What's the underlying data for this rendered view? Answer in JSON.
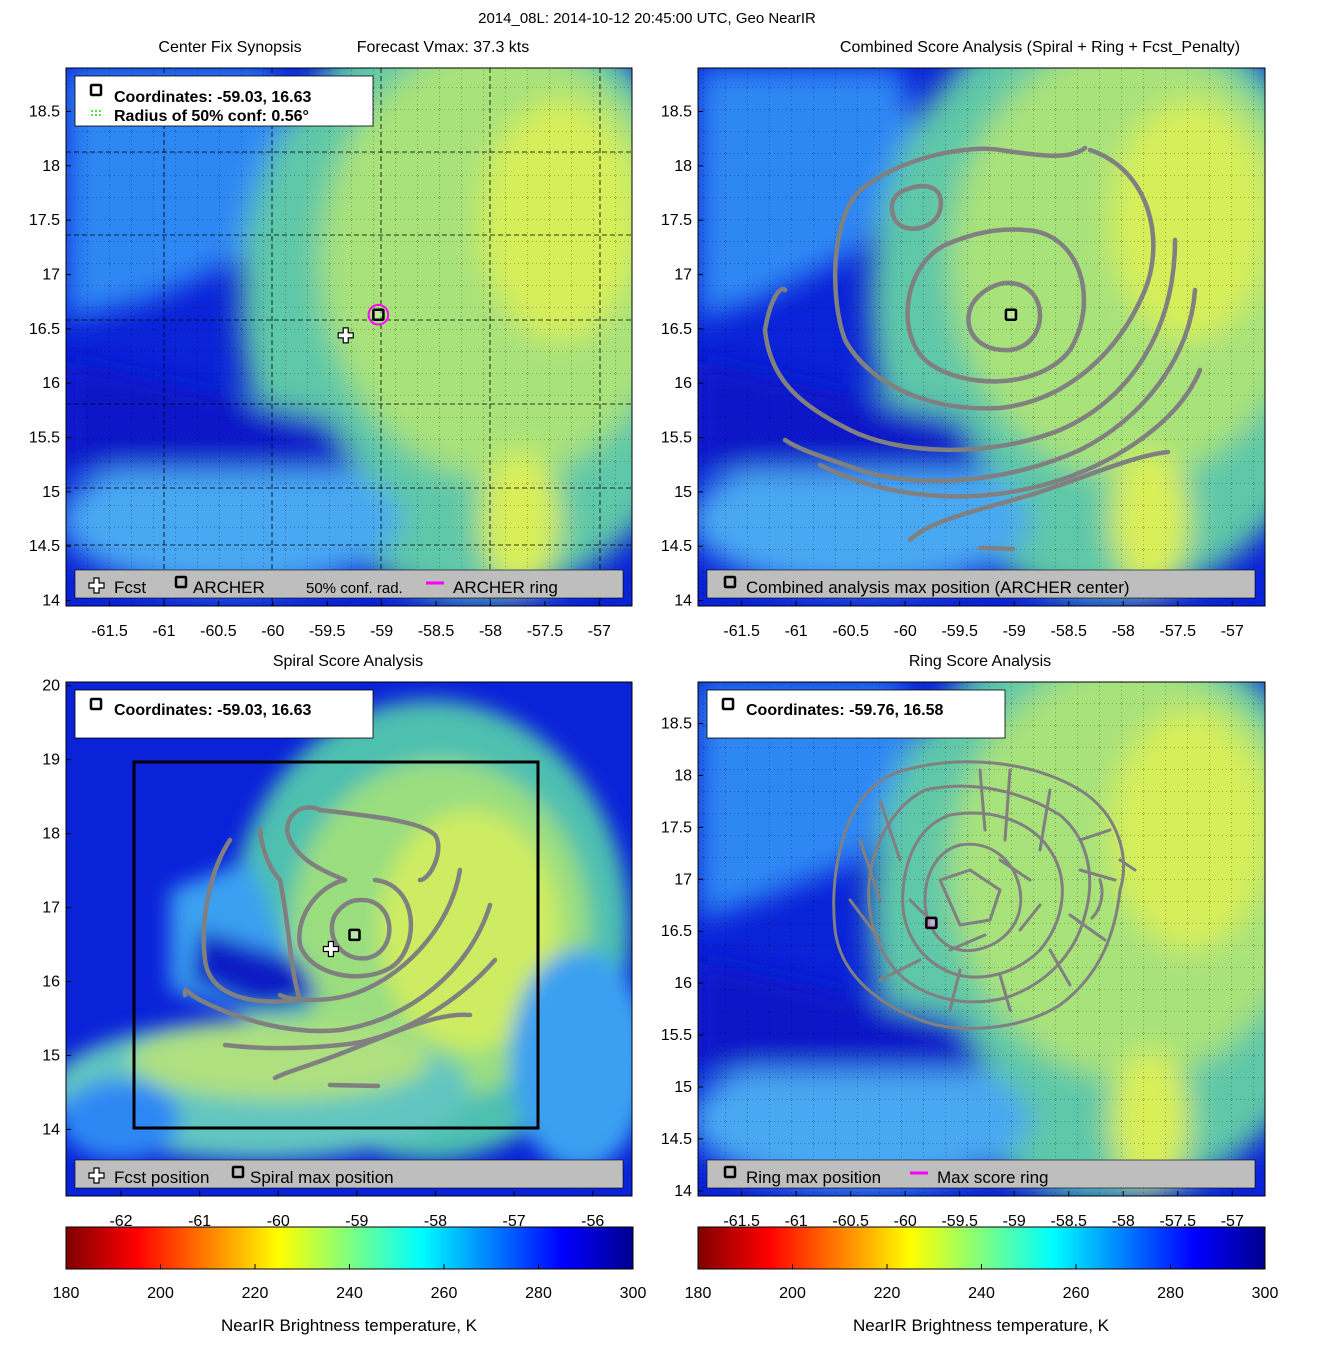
{
  "suptitle": "2014_08L: 2014-10-12 20:45:00 UTC, Geo NearIR",
  "colors": {
    "marker": "#000000",
    "ring": "#ff00ff",
    "contour": "#808080",
    "legend_bg": "#bebebe",
    "conf_dots": "#00c800"
  },
  "chart_data": [
    {
      "type": "heatmap",
      "panel": "top-left",
      "title_left": "Center Fix Synopsis",
      "title_right": "Forecast Vmax: 37.3 kts",
      "xlim": [
        -61.9,
        -56.7
      ],
      "ylim": [
        13.95,
        18.9
      ],
      "xticks": [
        "-61.5",
        "-61",
        "-60.5",
        "-60",
        "-59.5",
        "-59",
        "-58.5",
        "-58",
        "-57.5",
        "-57"
      ],
      "yticks": [
        "14",
        "14.5",
        "15",
        "15.5",
        "16",
        "16.5",
        "17",
        "17.5",
        "18",
        "18.5"
      ],
      "grid": "dotted",
      "info_box": {
        "line1": "Coordinates: -59.03, 16.63",
        "line2": "Radius of 50% conf: 0.56°"
      },
      "legend": {
        "placement": "bottom",
        "items": [
          "Fcst",
          "ARCHER",
          "50% conf. rad.",
          "ARCHER ring"
        ]
      },
      "fcst_marker": {
        "x": -59.33,
        "y": 16.44
      },
      "center_marker": {
        "x": -59.03,
        "y": 16.63
      },
      "ring": {
        "x": -59.03,
        "y": 16.63,
        "radius_deg": 0.09
      }
    },
    {
      "type": "heatmap",
      "panel": "top-right",
      "title": "Combined Score Analysis (Spiral + Ring + Fcst_Penalty)",
      "xlim": [
        -61.9,
        -56.7
      ],
      "ylim": [
        13.95,
        18.9
      ],
      "xticks": [
        "-61.5",
        "-61",
        "-60.5",
        "-60",
        "-59.5",
        "-59",
        "-58.5",
        "-58",
        "-57.5",
        "-57"
      ],
      "yticks": [
        "14",
        "14.5",
        "15",
        "15.5",
        "16",
        "16.5",
        "17",
        "17.5",
        "18",
        "18.5"
      ],
      "grid": "dotted",
      "legend": {
        "placement": "bottom",
        "items": [
          "Combined analysis max position (ARCHER center)"
        ]
      },
      "center_marker": {
        "x": -59.03,
        "y": 16.63
      }
    },
    {
      "type": "heatmap",
      "panel": "bottom-left",
      "title": "Spiral Score Analysis",
      "xlim": [
        -62.7,
        -55.5
      ],
      "ylim": [
        13.1,
        20.05
      ],
      "xticks": [
        "-62",
        "-61",
        "-60",
        "-59",
        "-58",
        "-57",
        "-56"
      ],
      "yticks": [
        "14",
        "15",
        "16",
        "17",
        "18",
        "19",
        "20"
      ],
      "info_box": {
        "line1": "Coordinates: -59.03, 16.63"
      },
      "legend": {
        "placement": "bottom",
        "items": [
          "Fcst position",
          "Spiral max position"
        ]
      },
      "search_box": {
        "x0": -61.8,
        "x1": -56.6,
        "y0": 13.95,
        "y1": 18.95
      },
      "fcst_marker": {
        "x": -59.33,
        "y": 16.44
      },
      "center_marker": {
        "x": -59.03,
        "y": 16.63
      }
    },
    {
      "type": "heatmap",
      "panel": "bottom-right",
      "title": "Ring Score Analysis",
      "xlim": [
        -61.9,
        -56.7
      ],
      "ylim": [
        13.95,
        18.9
      ],
      "xticks": [
        "-61.5",
        "-61",
        "-60.5",
        "-60",
        "-59.5",
        "-59",
        "-58.5",
        "-58",
        "-57.5",
        "-57"
      ],
      "yticks": [
        "14",
        "14.5",
        "15",
        "15.5",
        "16",
        "16.5",
        "17",
        "17.5",
        "18",
        "18.5"
      ],
      "grid": "dotted",
      "info_box": {
        "line1": "Coordinates: -59.76, 16.58"
      },
      "legend": {
        "placement": "bottom",
        "items": [
          "Ring max position",
          "Max score ring"
        ]
      },
      "center_marker": {
        "x": -59.76,
        "y": 16.58
      },
      "ring": {
        "x": -59.76,
        "y": 16.58,
        "radius_deg": 0.04
      }
    }
  ],
  "colorbars": [
    {
      "label": "NearIR Brightness temperature, K",
      "range": [
        180,
        300
      ],
      "ticks": [
        "180",
        "200",
        "220",
        "240",
        "260",
        "280",
        "300"
      ],
      "colormap": "jet-reversed"
    },
    {
      "label": "NearIR Brightness temperature, K",
      "range": [
        180,
        300
      ],
      "ticks": [
        "180",
        "200",
        "220",
        "240",
        "260",
        "280",
        "300"
      ],
      "colormap": "jet-reversed"
    }
  ]
}
